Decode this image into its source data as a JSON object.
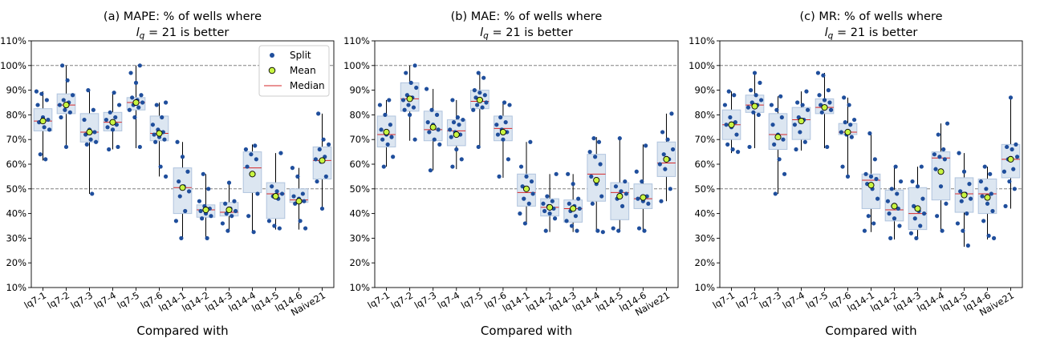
{
  "chart_data": [
    {
      "type": "box",
      "title_line1": "(a) MAPE: % of wells where",
      "title_line2_italic": "l",
      "title_line2_sub": "q",
      "title_line2_rest": " = 21 is better",
      "xlabel": "Compared with",
      "ylabel": "",
      "ylim": [
        10,
        110
      ],
      "yticks": [
        "10%",
        "20%",
        "30%",
        "40%",
        "50%",
        "60%",
        "70%",
        "80%",
        "90%",
        "100%",
        "110%"
      ],
      "reference_lines": [
        50,
        100
      ],
      "legend": {
        "placement": "top-right",
        "entries": [
          "Split",
          "Mean",
          "Median"
        ]
      },
      "categories": [
        "lq7-1",
        "lq7-2",
        "lq7-3",
        "lq7-4",
        "lq7-5",
        "lq7-6",
        "lq14-1",
        "lq14-2",
        "lq14-3",
        "lq14-4",
        "lq14-5",
        "lq14-6",
        "Naive21"
      ],
      "boxes": [
        {
          "whislo": 61.5,
          "q1": 73.5,
          "med": 77.5,
          "q3": 82.5,
          "whishi": 89.5,
          "mean": 77.5,
          "points": [
            89.5,
            88.5,
            86,
            84,
            79,
            78,
            77,
            75,
            74,
            64,
            62
          ]
        },
        {
          "whislo": 66.5,
          "q1": 80.5,
          "med": 84,
          "q3": 88.5,
          "whishi": 100,
          "mean": 84,
          "points": [
            100,
            94,
            88,
            86,
            85,
            84,
            82,
            81,
            79,
            67
          ]
        },
        {
          "whislo": 48,
          "q1": 69,
          "med": 73,
          "q3": 80.5,
          "whishi": 90.5,
          "mean": 73,
          "points": [
            90,
            82,
            78,
            74,
            73,
            72,
            70,
            69,
            68,
            48
          ]
        },
        {
          "whislo": 66,
          "q1": 73.5,
          "med": 77,
          "q3": 81,
          "whishi": 89.5,
          "mean": 77,
          "points": [
            89,
            84,
            81,
            79,
            78,
            77,
            76,
            75,
            74,
            67,
            66
          ]
        },
        {
          "whislo": 66.5,
          "q1": 82,
          "med": 85,
          "q3": 87,
          "whishi": 100,
          "mean": 85,
          "points": [
            100,
            97,
            93,
            88,
            87,
            86,
            85,
            84,
            83,
            82,
            79,
            67
          ]
        },
        {
          "whislo": 55,
          "q1": 69.5,
          "med": 72.5,
          "q3": 79.5,
          "whishi": 85,
          "mean": 72.5,
          "points": [
            85,
            84,
            79,
            76,
            74,
            73,
            72,
            71,
            70,
            69,
            59,
            55
          ]
        },
        {
          "whislo": 29.5,
          "q1": 40,
          "med": 50.5,
          "q3": 58.5,
          "whishi": 69,
          "mean": 50.5,
          "points": [
            69,
            63,
            57,
            53,
            51,
            49,
            47,
            41,
            37,
            30
          ]
        },
        {
          "whislo": 29.5,
          "q1": 38.5,
          "med": 41.5,
          "q3": 43.5,
          "whishi": 56,
          "mean": 41.5,
          "points": [
            56,
            50,
            45,
            43,
            42,
            41,
            40,
            39,
            38,
            30
          ]
        },
        {
          "whislo": 32.5,
          "q1": 39,
          "med": 40.5,
          "q3": 44.5,
          "whishi": 53,
          "mean": 41.5,
          "points": [
            52.5,
            45,
            44,
            42,
            41,
            40,
            39,
            36,
            33
          ]
        },
        {
          "whislo": 32.5,
          "q1": 48.5,
          "med": 58.5,
          "q3": 65,
          "whishi": 68,
          "mean": 56,
          "points": [
            67.5,
            66,
            64,
            62,
            59,
            56,
            48,
            39,
            32.5
          ]
        },
        {
          "whislo": 33.5,
          "q1": 38,
          "med": 48,
          "q3": 52.5,
          "whishi": 64.5,
          "mean": 47,
          "points": [
            64.5,
            51,
            49,
            48,
            47,
            46,
            37,
            35,
            34
          ]
        },
        {
          "whislo": 33.5,
          "q1": 44.5,
          "med": 45.5,
          "q3": 50,
          "whishi": 58.5,
          "mean": 45,
          "points": [
            58.5,
            55,
            48,
            47,
            46,
            45,
            44,
            37,
            34
          ]
        },
        {
          "whislo": 42,
          "q1": 54,
          "med": 61.5,
          "q3": 67,
          "whishi": 80.5,
          "mean": 61.5,
          "points": [
            80.5,
            70,
            68,
            66,
            63,
            62,
            61,
            55,
            53,
            42
          ]
        }
      ]
    },
    {
      "type": "box",
      "title_line1": "(b) MAE: % of wells where",
      "title_line2_italic": "l",
      "title_line2_sub": "q",
      "title_line2_rest": " = 21 is better",
      "xlabel": "Compared with",
      "ylabel": "",
      "ylim": [
        10,
        110
      ],
      "yticks": [
        "10%",
        "20%",
        "30%",
        "40%",
        "50%",
        "60%",
        "70%",
        "80%",
        "90%",
        "100%",
        "110%"
      ],
      "reference_lines": [
        50,
        100
      ],
      "categories": [
        "lq7-1",
        "lq7-2",
        "lq7-3",
        "lq7-4",
        "lq7-5",
        "lq7-6",
        "lq14-1",
        "lq14-2",
        "lq14-3",
        "lq14-4",
        "lq14-5",
        "lq14-6",
        "Naive21"
      ],
      "boxes": [
        {
          "whislo": 59,
          "q1": 67,
          "med": 72,
          "q3": 79.5,
          "whishi": 86,
          "mean": 73,
          "points": [
            86,
            84,
            80,
            76,
            74,
            72,
            71,
            70,
            68,
            63,
            59
          ]
        },
        {
          "whislo": 69.5,
          "q1": 81.5,
          "med": 86.5,
          "q3": 93,
          "whishi": 100,
          "mean": 86.5,
          "points": [
            100,
            97,
            93,
            91,
            88,
            87,
            86,
            84,
            83,
            82,
            80,
            70
          ]
        },
        {
          "whislo": 57.5,
          "q1": 69.5,
          "med": 74,
          "q3": 81.5,
          "whishi": 90.5,
          "mean": 75,
          "points": [
            90.5,
            82,
            80,
            77,
            76,
            74,
            73,
            70,
            68,
            57.5
          ]
        },
        {
          "whislo": 58,
          "q1": 67.5,
          "med": 73.5,
          "q3": 78,
          "whishi": 86,
          "mean": 72,
          "points": [
            86,
            79,
            78,
            77,
            76,
            74,
            73,
            72,
            71,
            66,
            62,
            59
          ]
        },
        {
          "whislo": 66.5,
          "q1": 82.5,
          "med": 85.5,
          "q3": 90,
          "whishi": 97,
          "mean": 86,
          "points": [
            97,
            95,
            90,
            89,
            88,
            87,
            86,
            85,
            84,
            83,
            82,
            67
          ]
        },
        {
          "whislo": 54.5,
          "q1": 69.5,
          "med": 74.5,
          "q3": 79.5,
          "whishi": 85,
          "mean": 73,
          "points": [
            85,
            84,
            79,
            77,
            76,
            74,
            73,
            72,
            70,
            62,
            55
          ]
        },
        {
          "whislo": 35.5,
          "q1": 43,
          "med": 48.5,
          "q3": 56,
          "whishi": 69,
          "mean": 50,
          "points": [
            69,
            59,
            55,
            53,
            51,
            50,
            48,
            46,
            44,
            40,
            36
          ]
        },
        {
          "whislo": 32.5,
          "q1": 39,
          "med": 42.5,
          "q3": 46,
          "whishi": 56,
          "mean": 42.5,
          "points": [
            56,
            47,
            45,
            44,
            43,
            42,
            41,
            40,
            38,
            33
          ]
        },
        {
          "whislo": 32.5,
          "q1": 36.5,
          "med": 42,
          "q3": 45.5,
          "whishi": 56,
          "mean": 42,
          "points": [
            56,
            52,
            46,
            44,
            43,
            42,
            41,
            39,
            37,
            35,
            33
          ]
        },
        {
          "whislo": 32.5,
          "q1": 45,
          "med": 56,
          "q3": 64,
          "whishi": 71,
          "mean": 53.5,
          "points": [
            70.5,
            69,
            65,
            63,
            60,
            55,
            52,
            47,
            44,
            33,
            32.5
          ]
        },
        {
          "whislo": 32.5,
          "q1": 37.5,
          "med": 48.5,
          "q3": 52.5,
          "whishi": 70.5,
          "mean": 47,
          "points": [
            70.5,
            53,
            51,
            49,
            48,
            46,
            43,
            34,
            33
          ]
        },
        {
          "whislo": 32.5,
          "q1": 42,
          "med": 46,
          "q3": 52,
          "whishi": 68,
          "mean": 46.5,
          "points": [
            67.5,
            57,
            53,
            47,
            46,
            45,
            44,
            34,
            33
          ]
        },
        {
          "whislo": 45,
          "q1": 55,
          "med": 60.5,
          "q3": 69,
          "whishi": 80.5,
          "mean": 62,
          "points": [
            80.5,
            73,
            70,
            66,
            64,
            62,
            60,
            58,
            50,
            45
          ]
        }
      ]
    },
    {
      "type": "box",
      "title_line1": "(c) MR: % of wells where",
      "title_line2_italic": "l",
      "title_line2_sub": "q",
      "title_line2_rest": " = 21 is better",
      "xlabel": "Compared with",
      "ylabel": "",
      "ylim": [
        10,
        110
      ],
      "yticks": [
        "10%",
        "20%",
        "30%",
        "40%",
        "50%",
        "60%",
        "70%",
        "80%",
        "90%",
        "100%",
        "110%"
      ],
      "reference_lines": [
        50,
        100
      ],
      "categories": [
        "lq7-1",
        "lq7-2",
        "lq7-3",
        "lq7-4",
        "lq7-5",
        "lq7-6",
        "lq14-1",
        "lq14-2",
        "lq14-3",
        "lq14-4",
        "lq14-5",
        "lq14-6",
        "Naive21"
      ],
      "boxes": [
        {
          "whislo": 64.5,
          "q1": 70,
          "med": 76,
          "q3": 82,
          "whishi": 89.5,
          "mean": 76,
          "points": [
            89.5,
            88,
            84,
            79,
            77,
            76,
            75,
            72,
            68,
            66,
            65
          ]
        },
        {
          "whislo": 66.5,
          "q1": 81,
          "med": 84,
          "q3": 88,
          "whishi": 97,
          "mean": 83.5,
          "points": [
            97,
            93,
            90,
            88,
            86,
            85,
            84,
            83,
            81,
            80,
            67
          ]
        },
        {
          "whislo": 48,
          "q1": 66,
          "med": 72,
          "q3": 80.5,
          "whishi": 87.5,
          "mean": 71,
          "points": [
            87.5,
            84,
            82,
            79,
            76,
            72,
            70,
            68,
            62,
            56,
            48
          ]
        },
        {
          "whislo": 65.5,
          "q1": 70,
          "med": 78,
          "q3": 83,
          "whishi": 89.5,
          "mean": 77.5,
          "points": [
            89.5,
            85,
            84,
            82,
            79,
            78,
            76,
            73,
            69,
            66
          ]
        },
        {
          "whislo": 66.5,
          "q1": 80.5,
          "med": 83,
          "q3": 86.5,
          "whishi": 97,
          "mean": 83,
          "points": [
            97,
            96,
            90,
            88,
            86,
            85,
            84,
            83,
            82,
            81,
            67
          ]
        },
        {
          "whislo": 54.5,
          "q1": 72,
          "med": 73,
          "q3": 76.5,
          "whishi": 87,
          "mean": 73,
          "points": [
            87,
            84,
            78,
            77,
            76,
            73,
            72,
            71,
            59,
            55
          ]
        },
        {
          "whislo": 32.5,
          "q1": 42,
          "med": 53.5,
          "q3": 56,
          "whishi": 72.5,
          "mean": 51.5,
          "points": [
            72.5,
            62,
            56,
            55,
            54,
            52,
            50,
            46,
            39,
            36,
            33
          ]
        },
        {
          "whislo": 29.5,
          "q1": 37,
          "med": 41.5,
          "q3": 49.5,
          "whishi": 59,
          "mean": 43,
          "points": [
            59,
            53,
            50,
            48,
            45,
            43,
            42,
            40,
            38,
            35,
            30
          ]
        },
        {
          "whislo": 29.5,
          "q1": 33.5,
          "med": 40,
          "q3": 50.5,
          "whishi": 59,
          "mean": 42,
          "points": [
            59,
            53,
            51,
            46,
            43,
            41,
            40,
            38,
            35,
            32,
            30
          ]
        },
        {
          "whislo": 32.5,
          "q1": 45.5,
          "med": 62.5,
          "q3": 65,
          "whishi": 76.5,
          "mean": 57,
          "points": [
            76.5,
            72,
            66,
            64,
            63,
            62,
            58,
            51,
            44,
            39,
            33
          ]
        },
        {
          "whislo": 26.5,
          "q1": 40.5,
          "med": 48,
          "q3": 54.5,
          "whishi": 64.5,
          "mean": 47.5,
          "points": [
            64.5,
            57,
            52,
            49,
            48,
            46,
            45,
            40,
            36,
            33,
            27
          ]
        },
        {
          "whislo": 29.5,
          "q1": 40,
          "med": 48,
          "q3": 54,
          "whishi": 59,
          "mean": 46.5,
          "points": [
            59,
            56,
            53,
            50,
            48,
            47,
            44,
            41,
            37,
            31,
            30
          ]
        },
        {
          "whislo": 42,
          "q1": 54.5,
          "med": 62,
          "q3": 68,
          "whishi": 87,
          "mean": 62,
          "points": [
            87,
            68,
            67,
            66,
            63,
            62,
            58,
            57,
            53,
            50,
            43
          ]
        }
      ]
    }
  ],
  "colors": {
    "split": "#1f4e9c",
    "mean_fill": "#c8f542",
    "median": "#d62728",
    "box_fill": "#dce6f1",
    "box_edge": "#b0c4de",
    "whisker": "#000000",
    "ref_line": "#808080"
  }
}
